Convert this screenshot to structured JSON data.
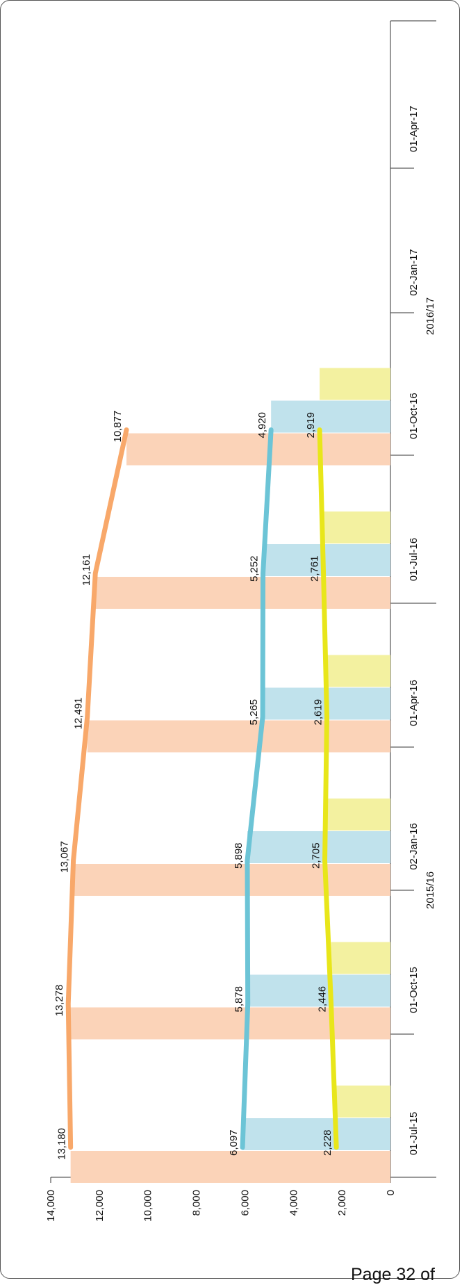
{
  "chart_data": {
    "type": "bar",
    "orientation": "rotated-90-clockwise",
    "categories": [
      "01-Jul-15",
      "01-Oct-15",
      "02-Jan-16",
      "01-Apr-16",
      "01-Jul-16",
      "01-Oct-16"
    ],
    "x_tick_labels": [
      "01-Jul-15",
      "01-Oct-15",
      "02-Jan-16",
      "01-Apr-16",
      "01-Jul-16",
      "01-Oct-16",
      "02-Jan-17",
      "01-Apr-17"
    ],
    "period_labels": [
      "2015/16",
      "2016/17"
    ],
    "series": [
      {
        "values": [
          13180,
          13278,
          13067,
          12491,
          12161,
          10877
        ],
        "labels": [
          "13,180",
          "13,278",
          "13,067",
          "12,491",
          "12,161",
          "10,877"
        ],
        "color": "#f8a86a",
        "bar_color": "#fbd3b8"
      },
      {
        "values": [
          6097,
          5878,
          5898,
          5265,
          5252,
          4920
        ],
        "labels": [
          "6,097",
          "5,878",
          "5,898",
          "5,265",
          "5,252",
          "4,920"
        ],
        "color": "#6cc4d6",
        "bar_color": "#c0e2ec"
      },
      {
        "values": [
          2228,
          2446,
          2705,
          2619,
          2761,
          2919
        ],
        "labels": [
          "2,228",
          "2,446",
          "2,705",
          "2,619",
          "2,761",
          "2,919"
        ],
        "color": "#e8e61a",
        "bar_color": "#f3f1a0"
      }
    ],
    "ylim": [
      0,
      14000
    ],
    "y_ticks": [
      0,
      2000,
      4000,
      6000,
      8000,
      10000,
      12000,
      14000
    ],
    "y_tick_labels": [
      "0",
      "2,000",
      "4,000",
      "6,000",
      "8,000",
      "10,000",
      "12,000",
      "14,000"
    ],
    "grid": false,
    "legend": "none"
  },
  "footer": {
    "text": "Page 32 of"
  }
}
